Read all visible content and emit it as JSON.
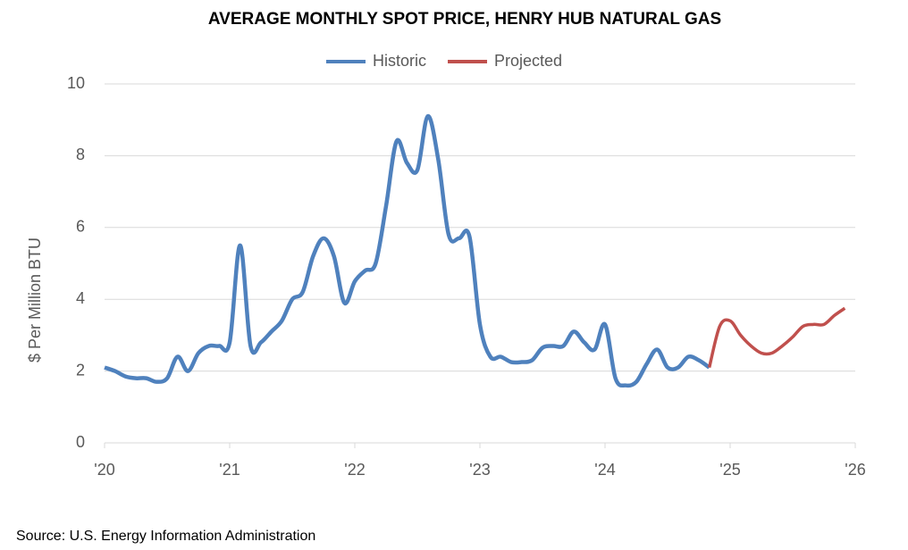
{
  "chart_data": {
    "type": "line",
    "title": "AVERAGE MONTHLY SPOT PRICE, HENRY HUB NATURAL GAS",
    "y_label": "$ Per Million BTU",
    "source": "Source: U.S. Energy Information Administration",
    "x": [
      0,
      1,
      2,
      3,
      4,
      5,
      6,
      7,
      8,
      9,
      10,
      11,
      12,
      13,
      14,
      15,
      16,
      17,
      18,
      19,
      20,
      21,
      22,
      23,
      24,
      25,
      26,
      27,
      28,
      29,
      30,
      31,
      32,
      33,
      34,
      35,
      36,
      37,
      38,
      39,
      40,
      41,
      42,
      43,
      44,
      45,
      46,
      47,
      48,
      49,
      50,
      51,
      52,
      53,
      54,
      55,
      56,
      57,
      58,
      59,
      60,
      61,
      62,
      63,
      64,
      65,
      66,
      67,
      68,
      69,
      70,
      71
    ],
    "xlim": [
      0,
      72
    ],
    "xticks": [
      {
        "value": 0,
        "label": "'20"
      },
      {
        "value": 12,
        "label": "'21"
      },
      {
        "value": 24,
        "label": "'22"
      },
      {
        "value": 36,
        "label": "'23"
      },
      {
        "value": 48,
        "label": "'24"
      },
      {
        "value": 60,
        "label": "'25"
      },
      {
        "value": 72,
        "label": "'26"
      }
    ],
    "ylim": [
      0,
      10
    ],
    "yticks": [
      0,
      2,
      4,
      6,
      8,
      10
    ],
    "grid": true,
    "legend": "top",
    "series": [
      {
        "name": "Historic",
        "color": "#4f81bd",
        "values": [
          2.1,
          2.0,
          1.85,
          1.8,
          1.8,
          1.7,
          1.8,
          2.4,
          2.0,
          2.5,
          2.7,
          2.7,
          2.8,
          5.5,
          2.7,
          2.8,
          3.1,
          3.4,
          4.0,
          4.2,
          5.2,
          5.7,
          5.2,
          3.9,
          4.5,
          4.8,
          5.0,
          6.6,
          8.4,
          7.8,
          7.6,
          9.1,
          7.9,
          5.8,
          5.7,
          5.75,
          3.3,
          2.4,
          2.4,
          2.25,
          2.25,
          2.3,
          2.65,
          2.7,
          2.7,
          3.1,
          2.8,
          2.6,
          3.3,
          1.8,
          1.6,
          1.7,
          2.2,
          2.6,
          2.1,
          2.1,
          2.4,
          2.3,
          2.1,
          null,
          null,
          null,
          null,
          null,
          null,
          null,
          null,
          null,
          null,
          null,
          null,
          null
        ]
      },
      {
        "name": "Projected",
        "color": "#c0504d",
        "values": [
          null,
          null,
          null,
          null,
          null,
          null,
          null,
          null,
          null,
          null,
          null,
          null,
          null,
          null,
          null,
          null,
          null,
          null,
          null,
          null,
          null,
          null,
          null,
          null,
          null,
          null,
          null,
          null,
          null,
          null,
          null,
          null,
          null,
          null,
          null,
          null,
          null,
          null,
          null,
          null,
          null,
          null,
          null,
          null,
          null,
          null,
          null,
          null,
          null,
          null,
          null,
          null,
          null,
          null,
          null,
          null,
          null,
          null,
          2.1,
          3.25,
          3.4,
          3.0,
          2.7,
          2.5,
          2.5,
          2.7,
          2.95,
          3.25,
          3.3,
          3.3,
          3.55,
          3.75
        ]
      }
    ]
  }
}
